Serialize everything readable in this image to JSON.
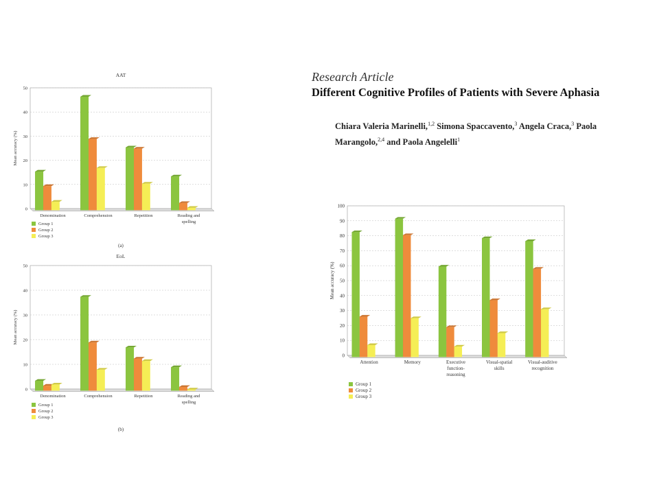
{
  "header": {
    "article_type": "Research Article",
    "title": "Different Cognitive Profiles of Patients with Severe Aphasia",
    "authors": [
      {
        "name": "Chiara Valeria Marinelli,",
        "aff": "1,2"
      },
      {
        "name": "Simona Spaccavento,",
        "aff": "3"
      },
      {
        "name": "Angela Craca,",
        "aff": "3"
      },
      {
        "name": "Paola Marangolo,",
        "aff": "2,4"
      },
      {
        "name": "and Paola Angelelli",
        "aff": "1"
      }
    ]
  },
  "colors": {
    "group1": "#8bc53f",
    "group2": "#ef8b3c",
    "group3": "#f5ee55",
    "grid": "#bbbbbb",
    "axis": "#666666"
  },
  "chart_data": [
    {
      "type": "bar",
      "title": "AAT",
      "subcaption": "(a)",
      "ylabel": "Mean accuracy (%)",
      "ylim": [
        0,
        50
      ],
      "yticks": [
        0,
        10,
        20,
        30,
        40,
        50
      ],
      "categories": [
        "Denomination",
        "Comprehension",
        "Repetition",
        "Reading and spelling"
      ],
      "series": [
        {
          "name": "Group 1",
          "values": [
            16,
            47,
            26,
            14
          ]
        },
        {
          "name": "Group 2",
          "values": [
            10,
            29.5,
            25.5,
            3
          ]
        },
        {
          "name": "Group 3",
          "values": [
            3.5,
            17.5,
            11,
            1
          ]
        }
      ],
      "legend_position": "bottom-left"
    },
    {
      "type": "bar",
      "title": "EoL",
      "subcaption": "(b)",
      "ylabel": "Mean accuracy (%)",
      "ylim": [
        0,
        50
      ],
      "yticks": [
        0,
        10,
        20,
        30,
        40,
        50
      ],
      "categories": [
        "Denomination",
        "Comprehension",
        "Repetition",
        "Reading and spelling"
      ],
      "series": [
        {
          "name": "Group 1",
          "values": [
            4,
            38,
            17.5,
            9.5
          ]
        },
        {
          "name": "Group 2",
          "values": [
            2,
            19.5,
            13,
            1.5
          ]
        },
        {
          "name": "Group 3",
          "values": [
            2.5,
            8.5,
            12,
            0.5
          ]
        }
      ],
      "legend_position": "bottom-left"
    },
    {
      "type": "bar",
      "title": "",
      "ylabel": "Mean accuracy (%)",
      "ylim": [
        0,
        100
      ],
      "yticks": [
        0,
        10,
        20,
        30,
        40,
        50,
        60,
        70,
        80,
        90,
        100
      ],
      "categories": [
        "Attention",
        "Memory",
        "Executive function- reasoning",
        "Visual-spatial skills",
        "Visual-auditive recognition"
      ],
      "series": [
        {
          "name": "Group 1",
          "values": [
            83.5,
            92.5,
            60.5,
            79.5,
            77.5
          ]
        },
        {
          "name": "Group 2",
          "values": [
            27,
            81.5,
            20,
            38,
            59
          ]
        },
        {
          "name": "Group 3",
          "values": [
            8,
            26,
            7,
            16,
            32
          ]
        }
      ],
      "legend_position": "bottom-left"
    }
  ]
}
